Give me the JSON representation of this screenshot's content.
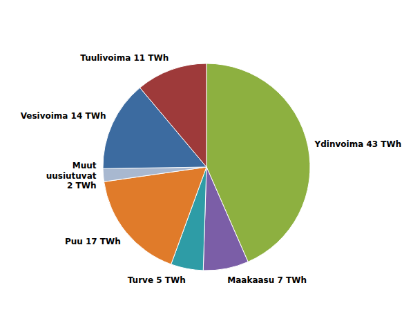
{
  "chart_data": {
    "type": "pie",
    "categories": [
      "Ydinvoima 43 TWh",
      "Maakaasu 7 TWh",
      "Turve 5 TWh",
      "Puu 17 TWh",
      "Muut\nuusiutuvat\n2 TWh",
      "Vesivoima 14 TWh",
      "Tuulivoima 11 TWh"
    ],
    "values": [
      43,
      7,
      5,
      17,
      2,
      14,
      11
    ],
    "colors": [
      "#8DB040",
      "#7B5EA7",
      "#2E9CA6",
      "#E07B2A",
      "#A8B8D0",
      "#3C6BA0",
      "#9E3A3A"
    ]
  }
}
